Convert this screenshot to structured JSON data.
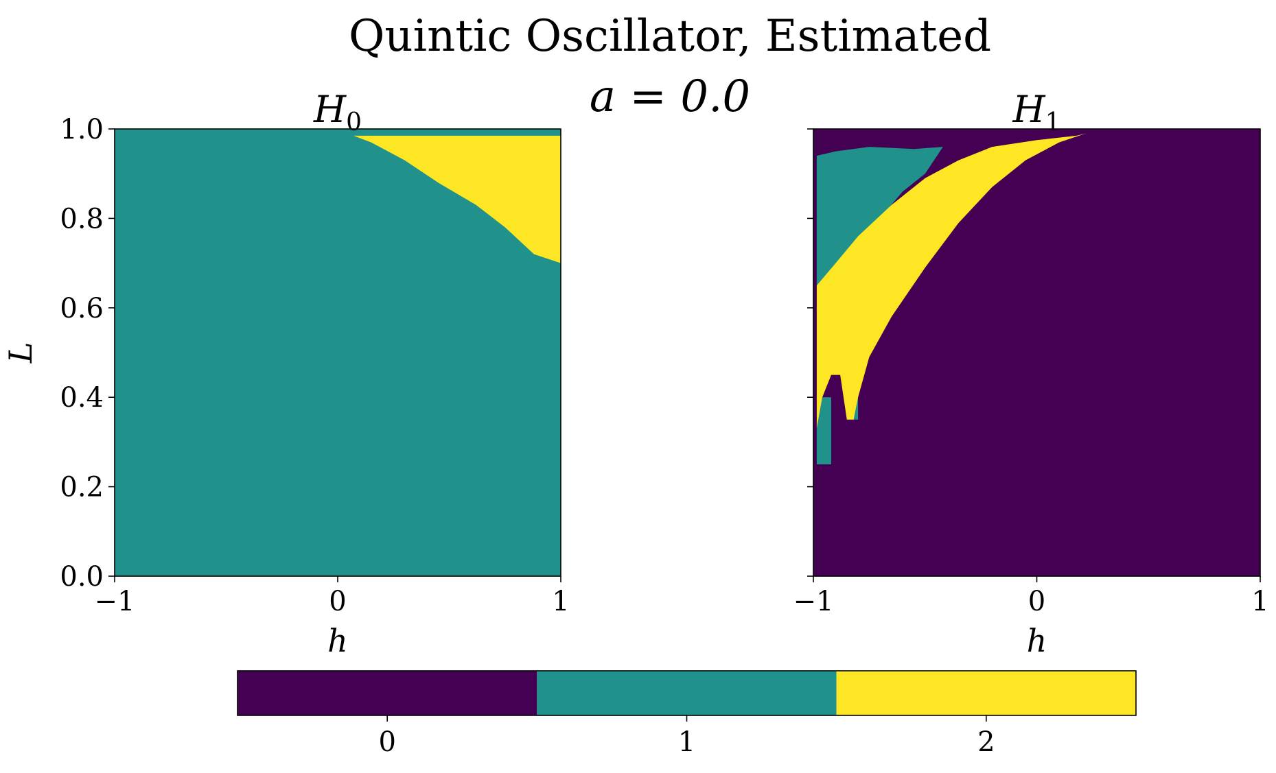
{
  "figure": {
    "suptitle": "Quintic Oscillator, Estimated",
    "param_label": "a = 0.0"
  },
  "chart_data": {
    "type": "heatmap",
    "colormap": {
      "0": "#440154",
      "1": "#21918c",
      "2": "#fde725"
    },
    "panels": [
      {
        "title": "H",
        "title_sub": "0",
        "xlabel": "h",
        "ylabel": "L",
        "xlim": [
          -1,
          1
        ],
        "ylim": [
          0,
          1
        ],
        "xticks": [
          "−1",
          "0",
          "1"
        ],
        "yticks": [
          "0.0",
          "0.2",
          "0.4",
          "0.6",
          "0.8",
          "1.0"
        ],
        "background_value": 1,
        "regions": [
          {
            "value": 2,
            "polygon": [
              [
                0.07,
                0.985
              ],
              [
                1.0,
                0.985
              ],
              [
                1.0,
                0.7
              ],
              [
                0.88,
                0.72
              ],
              [
                0.75,
                0.78
              ],
              [
                0.62,
                0.83
              ],
              [
                0.45,
                0.88
              ],
              [
                0.3,
                0.93
              ],
              [
                0.15,
                0.97
              ],
              [
                0.07,
                0.985
              ]
            ]
          },
          {
            "value": 1,
            "polygon": [
              [
                0.07,
                0.985
              ],
              [
                1.0,
                0.985
              ],
              [
                1.0,
                1.0
              ],
              [
                0.07,
                1.0
              ]
            ]
          }
        ]
      },
      {
        "title": "H",
        "title_sub": "1",
        "xlabel": "h",
        "ylabel": "",
        "xlim": [
          -1,
          1
        ],
        "ylim": [
          0,
          1
        ],
        "xticks": [
          "−1",
          "0",
          "1"
        ],
        "yticks": [],
        "background_value": 0,
        "regions": [
          {
            "value": 1,
            "polygon": [
              [
                -0.985,
                0.94
              ],
              [
                -0.9,
                0.95
              ],
              [
                -0.75,
                0.96
              ],
              [
                -0.55,
                0.955
              ],
              [
                -0.42,
                0.96
              ],
              [
                -0.5,
                0.9
              ],
              [
                -0.6,
                0.86
              ],
              [
                -0.72,
                0.79
              ],
              [
                -0.8,
                0.74
              ],
              [
                -0.9,
                0.69
              ],
              [
                -0.985,
                0.65
              ],
              [
                -0.985,
                0.94
              ]
            ]
          },
          {
            "value": 1,
            "polygon": [
              [
                -0.985,
                0.25
              ],
              [
                -0.985,
                0.33
              ],
              [
                -0.96,
                0.4
              ],
              [
                -0.92,
                0.4
              ],
              [
                -0.92,
                0.25
              ]
            ]
          },
          {
            "value": 1,
            "polygon": [
              [
                -0.85,
                0.35
              ],
              [
                -0.8,
                0.35
              ],
              [
                -0.8,
                0.47
              ],
              [
                -0.85,
                0.47
              ]
            ]
          },
          {
            "value": 2,
            "polygon": [
              [
                -0.985,
                0.33
              ],
              [
                -0.985,
                0.65
              ],
              [
                -0.9,
                0.7
              ],
              [
                -0.8,
                0.76
              ],
              [
                -0.65,
                0.83
              ],
              [
                -0.5,
                0.89
              ],
              [
                -0.35,
                0.93
              ],
              [
                -0.2,
                0.96
              ],
              [
                0.0,
                0.975
              ],
              [
                0.18,
                0.985
              ],
              [
                0.22,
                0.99
              ],
              [
                0.1,
                0.97
              ],
              [
                -0.05,
                0.93
              ],
              [
                -0.2,
                0.87
              ],
              [
                -0.35,
                0.79
              ],
              [
                -0.5,
                0.69
              ],
              [
                -0.65,
                0.58
              ],
              [
                -0.75,
                0.49
              ],
              [
                -0.8,
                0.4
              ],
              [
                -0.82,
                0.35
              ],
              [
                -0.85,
                0.35
              ],
              [
                -0.88,
                0.45
              ],
              [
                -0.92,
                0.45
              ],
              [
                -0.96,
                0.4
              ],
              [
                -0.985,
                0.33
              ]
            ]
          }
        ]
      }
    ],
    "colorbar": {
      "categories": [
        "0",
        "1",
        "2"
      ],
      "values": [
        0,
        1,
        2
      ]
    }
  }
}
